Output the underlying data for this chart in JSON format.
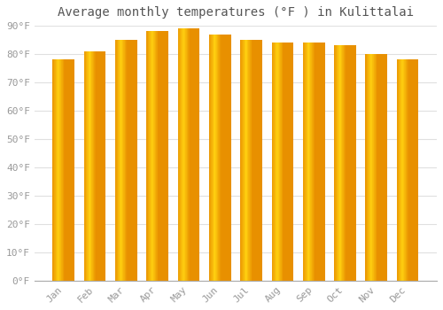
{
  "title": "Average monthly temperatures (°F ) in Kulittalai",
  "months": [
    "Jan",
    "Feb",
    "Mar",
    "Apr",
    "May",
    "Jun",
    "Jul",
    "Aug",
    "Sep",
    "Oct",
    "Nov",
    "Dec"
  ],
  "values": [
    78,
    81,
    85,
    88,
    89,
    87,
    85,
    84,
    84,
    83,
    80,
    78
  ],
  "bar_color_left": "#F5A800",
  "bar_color_center": "#FFD84D",
  "bar_color_right": "#E89000",
  "background_color": "#FFFFFF",
  "grid_color": "#E0E0E0",
  "ylim": [
    0,
    90
  ],
  "yticks": [
    0,
    10,
    20,
    30,
    40,
    50,
    60,
    70,
    80,
    90
  ],
  "ytick_labels": [
    "0°F",
    "10°F",
    "20°F",
    "30°F",
    "40°F",
    "50°F",
    "60°F",
    "70°F",
    "80°F",
    "90°F"
  ],
  "title_fontsize": 10,
  "tick_fontsize": 8,
  "figsize": [
    5.0,
    3.5
  ],
  "dpi": 100
}
